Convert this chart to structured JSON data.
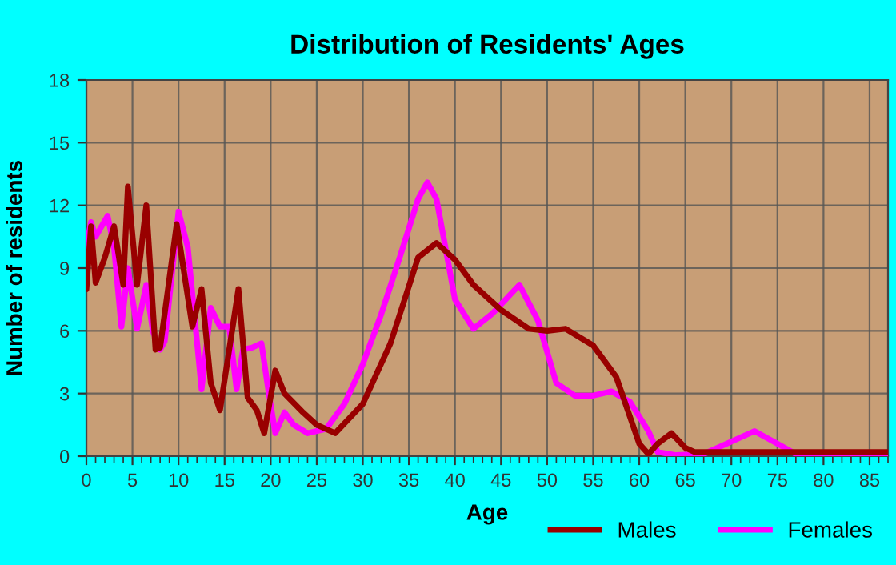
{
  "chart_data": {
    "type": "line",
    "title": "Distribution of Residents' Ages",
    "xlabel": "Age",
    "ylabel": "Number of residents",
    "xlim": [
      0,
      87
    ],
    "xticks": [
      0,
      5,
      10,
      15,
      20,
      25,
      30,
      35,
      40,
      45,
      50,
      55,
      60,
      65,
      70,
      75,
      80,
      85
    ],
    "ylim": [
      0,
      18
    ],
    "yticks": [
      0,
      3,
      6,
      9,
      12,
      15,
      18
    ],
    "grid": true,
    "legend": "bottom",
    "series": [
      {
        "name": "Males",
        "color": "#990000",
        "x": [
          0,
          0.5,
          1,
          2,
          3,
          4,
          4.5,
          5.5,
          6.5,
          7.5,
          8,
          9.8,
          11.5,
          12.5,
          13.5,
          14.5,
          16.5,
          17.5,
          18.5,
          19.3,
          20.5,
          21.5,
          23.5,
          25,
          27,
          30,
          33,
          36,
          38,
          40,
          42,
          45,
          48,
          50,
          52,
          55,
          57.5,
          60,
          61,
          62,
          63.5,
          65,
          66,
          70,
          87
        ],
        "values": [
          8,
          11,
          8.3,
          9.5,
          11,
          8.2,
          12.9,
          8.2,
          12,
          5.1,
          5.2,
          11.1,
          6.2,
          8,
          3.5,
          2.2,
          8,
          2.8,
          2.2,
          1.1,
          4.1,
          3,
          2.1,
          1.5,
          1.1,
          2.5,
          5.4,
          9.5,
          10.2,
          9.4,
          8.2,
          7,
          6.1,
          6,
          6.1,
          5.3,
          3.8,
          0.6,
          0.1,
          0.6,
          1.1,
          0.4,
          0.2,
          0.2,
          0.2
        ]
      },
      {
        "name": "Females",
        "color": "#ff00ff",
        "x": [
          0,
          0.5,
          1,
          2.3,
          3,
          3.8,
          4.5,
          5.5,
          6.5,
          7.2,
          8,
          8.5,
          10,
          11,
          12,
          12.5,
          13.5,
          14.5,
          15.5,
          16.3,
          17,
          18,
          19,
          19.8,
          20.5,
          21.5,
          22.5,
          24,
          26,
          28,
          30,
          32,
          34,
          36,
          37,
          38,
          40,
          42,
          44,
          47,
          49,
          51,
          53,
          55,
          57,
          59,
          61,
          62,
          64,
          67,
          70,
          72.5,
          75,
          77,
          80,
          87
        ],
        "values": [
          10,
          11.2,
          10.5,
          11.5,
          10,
          6.2,
          9,
          6.1,
          8.2,
          6,
          5.1,
          5.5,
          11.7,
          10,
          5.5,
          3.2,
          7.1,
          6.2,
          6.2,
          3.2,
          5.1,
          5.2,
          5.4,
          3,
          1.1,
          2.1,
          1.5,
          1.1,
          1.3,
          2.5,
          4.4,
          6.8,
          9.5,
          12.3,
          13.1,
          12.3,
          7.5,
          6.1,
          6.8,
          8.2,
          6.5,
          3.5,
          2.9,
          2.9,
          3.1,
          2.6,
          1.2,
          0.2,
          0.05,
          0.1,
          0.7,
          1.2,
          0.6,
          0.1,
          0.05,
          0.05
        ]
      }
    ]
  }
}
